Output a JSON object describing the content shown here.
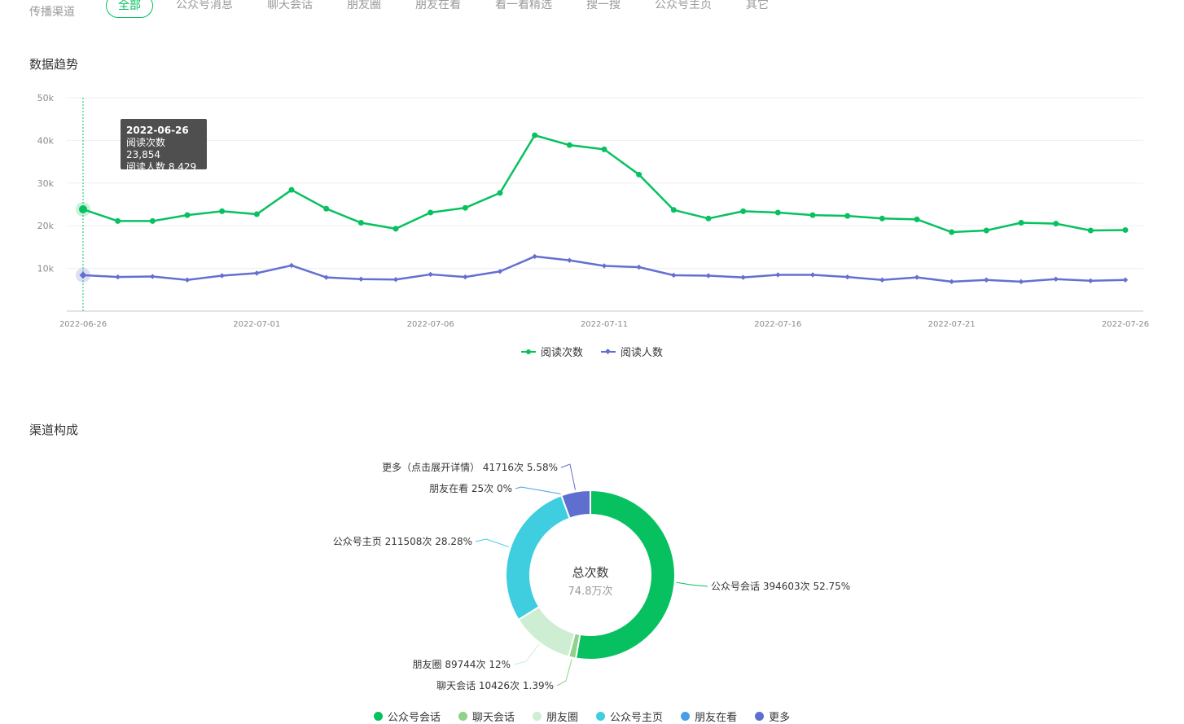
{
  "filter": {
    "label": "传播渠道",
    "chips": [
      "全部",
      "公众号消息",
      "聊天会话",
      "朋友圈",
      "朋友在看",
      "看一看精选",
      "搜一搜",
      "公众号主页",
      "其它"
    ],
    "active": "全部"
  },
  "trend": {
    "title": "数据趋势",
    "tooltip": {
      "date": "2022-06-26",
      "line1": "阅读次数 23,854",
      "line2": "阅读人数 8,429"
    }
  },
  "chart_data": [
    {
      "type": "line",
      "title": "",
      "x": [
        "2022-06-26",
        "2022-06-27",
        "2022-06-28",
        "2022-06-29",
        "2022-06-30",
        "2022-07-01",
        "2022-07-02",
        "2022-07-03",
        "2022-07-04",
        "2022-07-05",
        "2022-07-06",
        "2022-07-07",
        "2022-07-08",
        "2022-07-09",
        "2022-07-10",
        "2022-07-11",
        "2022-07-12",
        "2022-07-13",
        "2022-07-14",
        "2022-07-15",
        "2022-07-16",
        "2022-07-17",
        "2022-07-18",
        "2022-07-19",
        "2022-07-20",
        "2022-07-21",
        "2022-07-22",
        "2022-07-23",
        "2022-07-24",
        "2022-07-25",
        "2022-07-26"
      ],
      "x_tick_labels": [
        "2022-06-26",
        "2022-07-01",
        "2022-07-06",
        "2022-07-11",
        "2022-07-16",
        "2022-07-21",
        "2022-07-26"
      ],
      "y_tick_labels": [
        "10k",
        "20k",
        "30k",
        "40k",
        "50k"
      ],
      "ylim": [
        0,
        50000
      ],
      "grid": true,
      "legend": "bottom",
      "series": [
        {
          "name": "阅读次数",
          "color": "#07c160",
          "marker": "circle",
          "values": [
            23854,
            21100,
            21100,
            22500,
            23400,
            22700,
            28400,
            24000,
            20700,
            19300,
            23100,
            24200,
            27700,
            41200,
            38900,
            37900,
            32000,
            23700,
            21700,
            23400,
            23100,
            22500,
            22300,
            21700,
            21500,
            18500,
            18900,
            20700,
            20500,
            18900,
            19000
          ]
        },
        {
          "name": "阅读人数",
          "color": "#6470d0",
          "marker": "diamond",
          "values": [
            8429,
            8000,
            8100,
            7300,
            8300,
            8900,
            10700,
            7900,
            7500,
            7400,
            8600,
            8000,
            9300,
            12800,
            11900,
            10600,
            10300,
            8400,
            8300,
            7900,
            8500,
            8500,
            8000,
            7300,
            7900,
            6900,
            7300,
            6900,
            7500,
            7100,
            7300
          ]
        }
      ]
    },
    {
      "type": "pie",
      "title": "",
      "center_title": "总次数",
      "center_value": "74.8万次",
      "legend": "bottom",
      "slices": [
        {
          "name": "公众号会话",
          "value": 394603,
          "percent": 52.75,
          "color": "#07c160",
          "label": "公众号会话 394603次 52.75%"
        },
        {
          "name": "聊天会话",
          "value": 10426,
          "percent": 1.39,
          "color": "#8fd28a",
          "label": "聊天会话 10426次 1.39%"
        },
        {
          "name": "朋友圈",
          "value": 89744,
          "percent": 12,
          "color": "#cdeed3",
          "label": "朋友圈 89744次 12%"
        },
        {
          "name": "公众号主页",
          "value": 211508,
          "percent": 28.28,
          "color": "#3ecee0",
          "label": "公众号主页 211508次 28.28%"
        },
        {
          "name": "朋友在看",
          "value": 25,
          "percent": 0,
          "color": "#4a9ee8",
          "label": "朋友在看 25次 0%"
        },
        {
          "name": "更多",
          "value": 41716,
          "percent": 5.58,
          "color": "#5f6fcf",
          "label": "更多（点击展开详情） 41716次 5.58%"
        }
      ]
    }
  ],
  "channel": {
    "title": "渠道构成",
    "legend": [
      "公众号会话",
      "聊天会话",
      "朋友圈",
      "公众号主页",
      "朋友在看",
      "更多"
    ]
  }
}
